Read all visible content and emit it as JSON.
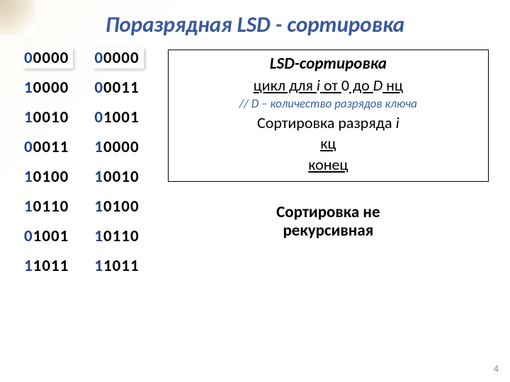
{
  "title": "Поразрядная LSD - сортировка",
  "title_color": "#3a5999",
  "prefix_color": "#1f3f8f",
  "background": {
    "corner_gradient": "radial-gradient(circle at 0 0, #d8c8b0 0%, #f1e8d6 55%, #ffffff 85%)",
    "body_gradient": "linear-gradient(135deg, #fdfbf6 0%, #ffffff 22%)"
  },
  "columns": [
    {
      "boxed_first": true,
      "rows": [
        {
          "p": "0",
          "s": "0000"
        },
        {
          "p": "1",
          "s": "0000"
        },
        {
          "p": "1",
          "s": "0010"
        },
        {
          "p": "0",
          "s": "0011"
        },
        {
          "p": "1",
          "s": "0100"
        },
        {
          "p": "1",
          "s": "0110"
        },
        {
          "p": "0",
          "s": "1001"
        },
        {
          "p": "1",
          "s": "1011"
        }
      ]
    },
    {
      "boxed_first": true,
      "rows": [
        {
          "p": "0",
          "s": "0000"
        },
        {
          "p": "0",
          "s": "0011"
        },
        {
          "p": "0",
          "s": "1001"
        },
        {
          "p": "1",
          "s": "0000"
        },
        {
          "p": "1",
          "s": "0010"
        },
        {
          "p": "1",
          "s": "0100"
        },
        {
          "p": "1",
          "s": "0110"
        },
        {
          "p": "1",
          "s": "1011"
        }
      ]
    }
  ],
  "algo": {
    "title": "LSD-сортировка",
    "line1": {
      "t1": "цикл",
      "t2": " для ",
      "t3": "i",
      "t4": " от ",
      "t5": "0",
      "t6": " до ",
      "t7": "D",
      "t8": " нц"
    },
    "comment": "// D – количество разрядов ключа",
    "line2": {
      "a": "Сортировка разряда ",
      "b": "i"
    },
    "line3": "кц",
    "line4": "конец"
  },
  "note_l1": "Сортировка не",
  "note_l2": "рекурсивная",
  "page_number": "4"
}
